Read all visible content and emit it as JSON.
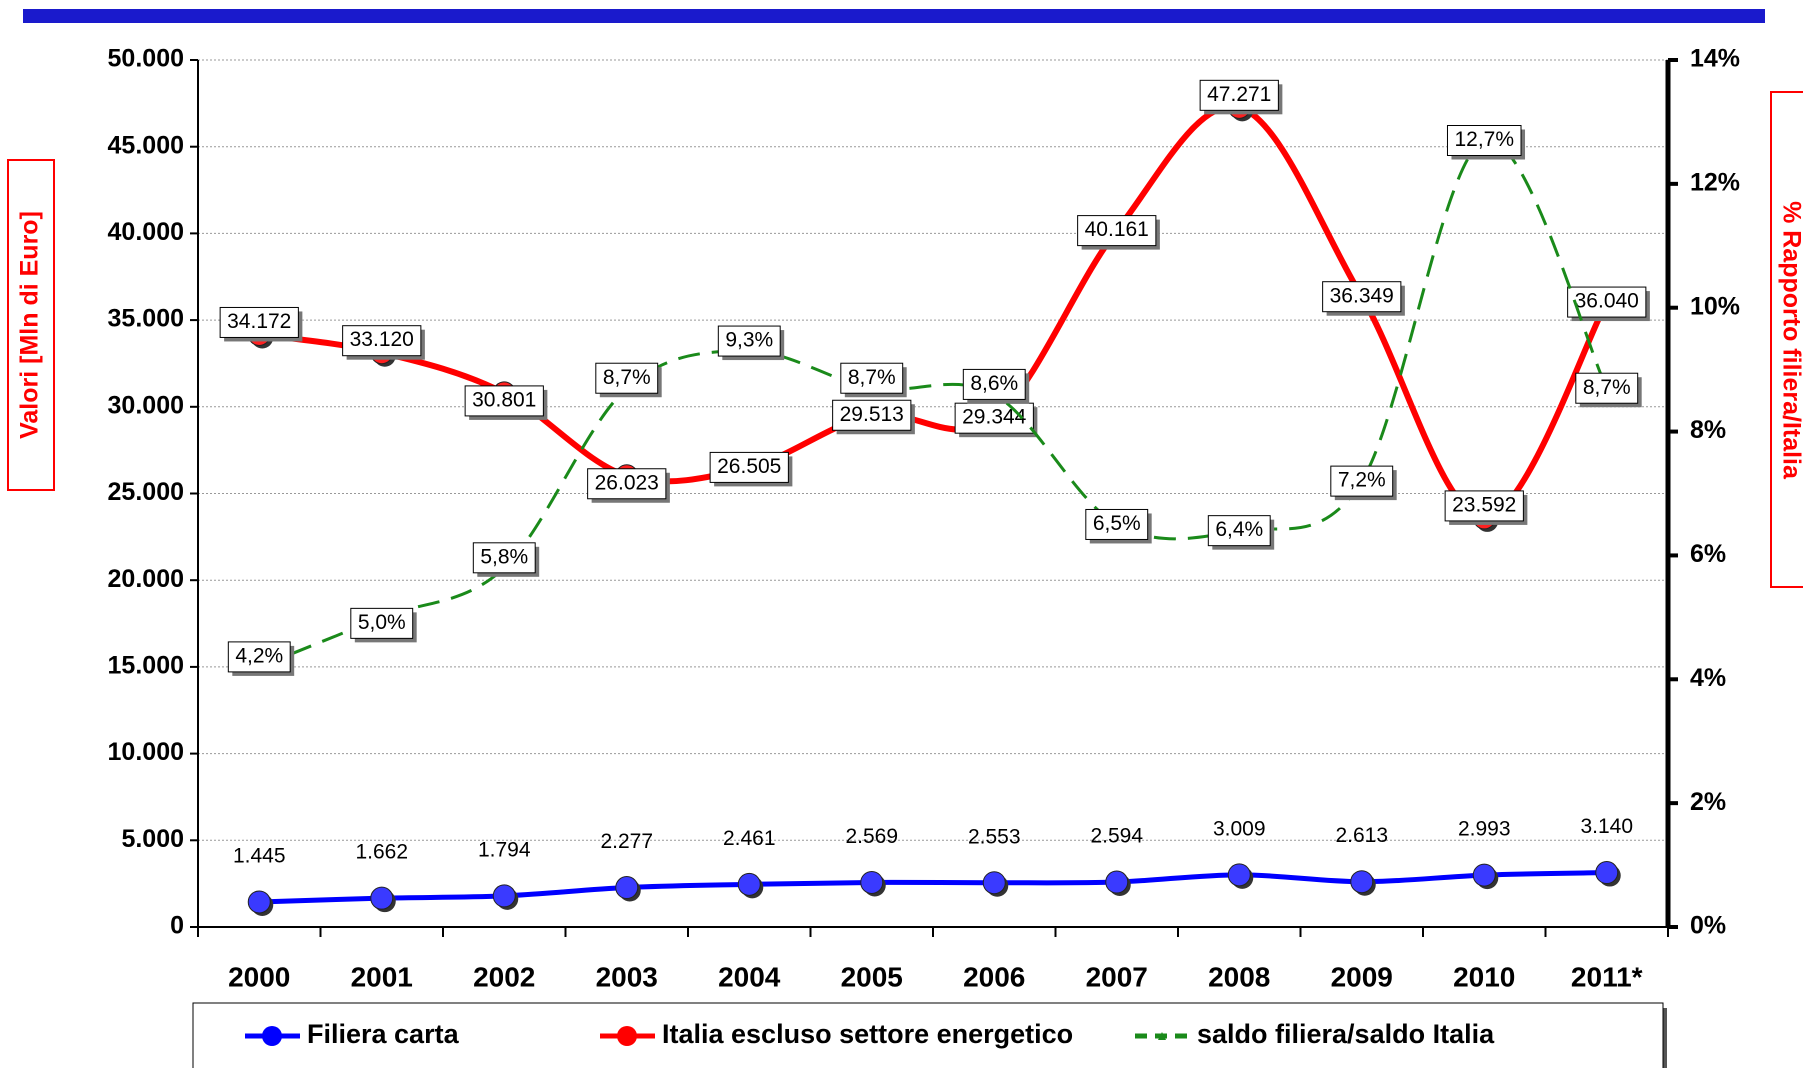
{
  "chart_data": {
    "type": "line",
    "y_label": "Valori [Mln di Euro]",
    "y2_label": "% Rapporto filiera/Italia",
    "categories": [
      "2000",
      "2001",
      "2002",
      "2003",
      "2004",
      "2005",
      "2006",
      "2007",
      "2008",
      "2009",
      "2010",
      "2011*"
    ],
    "series": [
      {
        "name": "Filiera carta",
        "color": "#0000ff",
        "values": [
          1445,
          1662,
          1794,
          2277,
          2461,
          2569,
          2553,
          2594,
          3009,
          2613,
          2993,
          3140
        ],
        "value_labels": [
          "1.445",
          "1.662",
          "1.794",
          "2.277",
          "2.461",
          "2.569",
          "2.553",
          "2.594",
          "3.009",
          "2.613",
          "2.993",
          "3.140"
        ]
      },
      {
        "name": "Italia escluso settore energetico",
        "color": "#ff0000",
        "values": [
          34172,
          33120,
          30801,
          26023,
          26505,
          29513,
          29344,
          40161,
          47271,
          36349,
          23592,
          36040
        ],
        "value_labels": [
          "34.172",
          "33.120",
          "30.801",
          "26.023",
          "26.505",
          "29.513",
          "29.344",
          "40.161",
          "47.271",
          "36.349",
          "23.592",
          "36.040"
        ]
      },
      {
        "name": "saldo filiera/saldo Italia",
        "color": "#1a8a1a",
        "axis": "y2",
        "values": [
          4.2,
          5.0,
          5.8,
          8.7,
          9.3,
          8.7,
          8.6,
          6.5,
          6.4,
          7.2,
          12.7,
          8.7
        ],
        "value_labels": [
          "4,2%",
          "5,0%",
          "5,8%",
          "8,7%",
          "9,3%",
          "8,7%",
          "8,6%",
          "6,5%",
          "6,4%",
          "7,2%",
          "12,7%",
          "8,7%"
        ]
      }
    ],
    "ylim": [
      0,
      50000
    ],
    "yticks": [
      0,
      {
        "value": 5000,
        "label": "5.000"
      },
      {
        "value": 10000,
        "label": "10.000"
      },
      {
        "value": 15000,
        "label": "15.000"
      },
      {
        "value": 20000,
        "label": "20.000"
      },
      {
        "value": 25000,
        "label": "25.000"
      },
      {
        "value": 30000,
        "label": "30.000"
      },
      {
        "value": 35000,
        "label": "35.000"
      },
      {
        "value": 40000,
        "label": "40.000"
      },
      {
        "value": 45000,
        "label": "45.000"
      },
      {
        "value": 50000,
        "label": "50.000"
      }
    ],
    "y2lim": [
      0,
      14
    ],
    "y2ticks": [
      {
        "value": 0,
        "label": "0%"
      },
      {
        "value": 2,
        "label": "2%"
      },
      {
        "value": 4,
        "label": "4%"
      },
      {
        "value": 6,
        "label": "6%"
      },
      {
        "value": 8,
        "label": "8%"
      },
      {
        "value": 10,
        "label": "10%"
      },
      {
        "value": 12,
        "label": "12%"
      },
      {
        "value": 14,
        "label": "14%"
      }
    ],
    "grid": true,
    "legend": "bottom"
  }
}
